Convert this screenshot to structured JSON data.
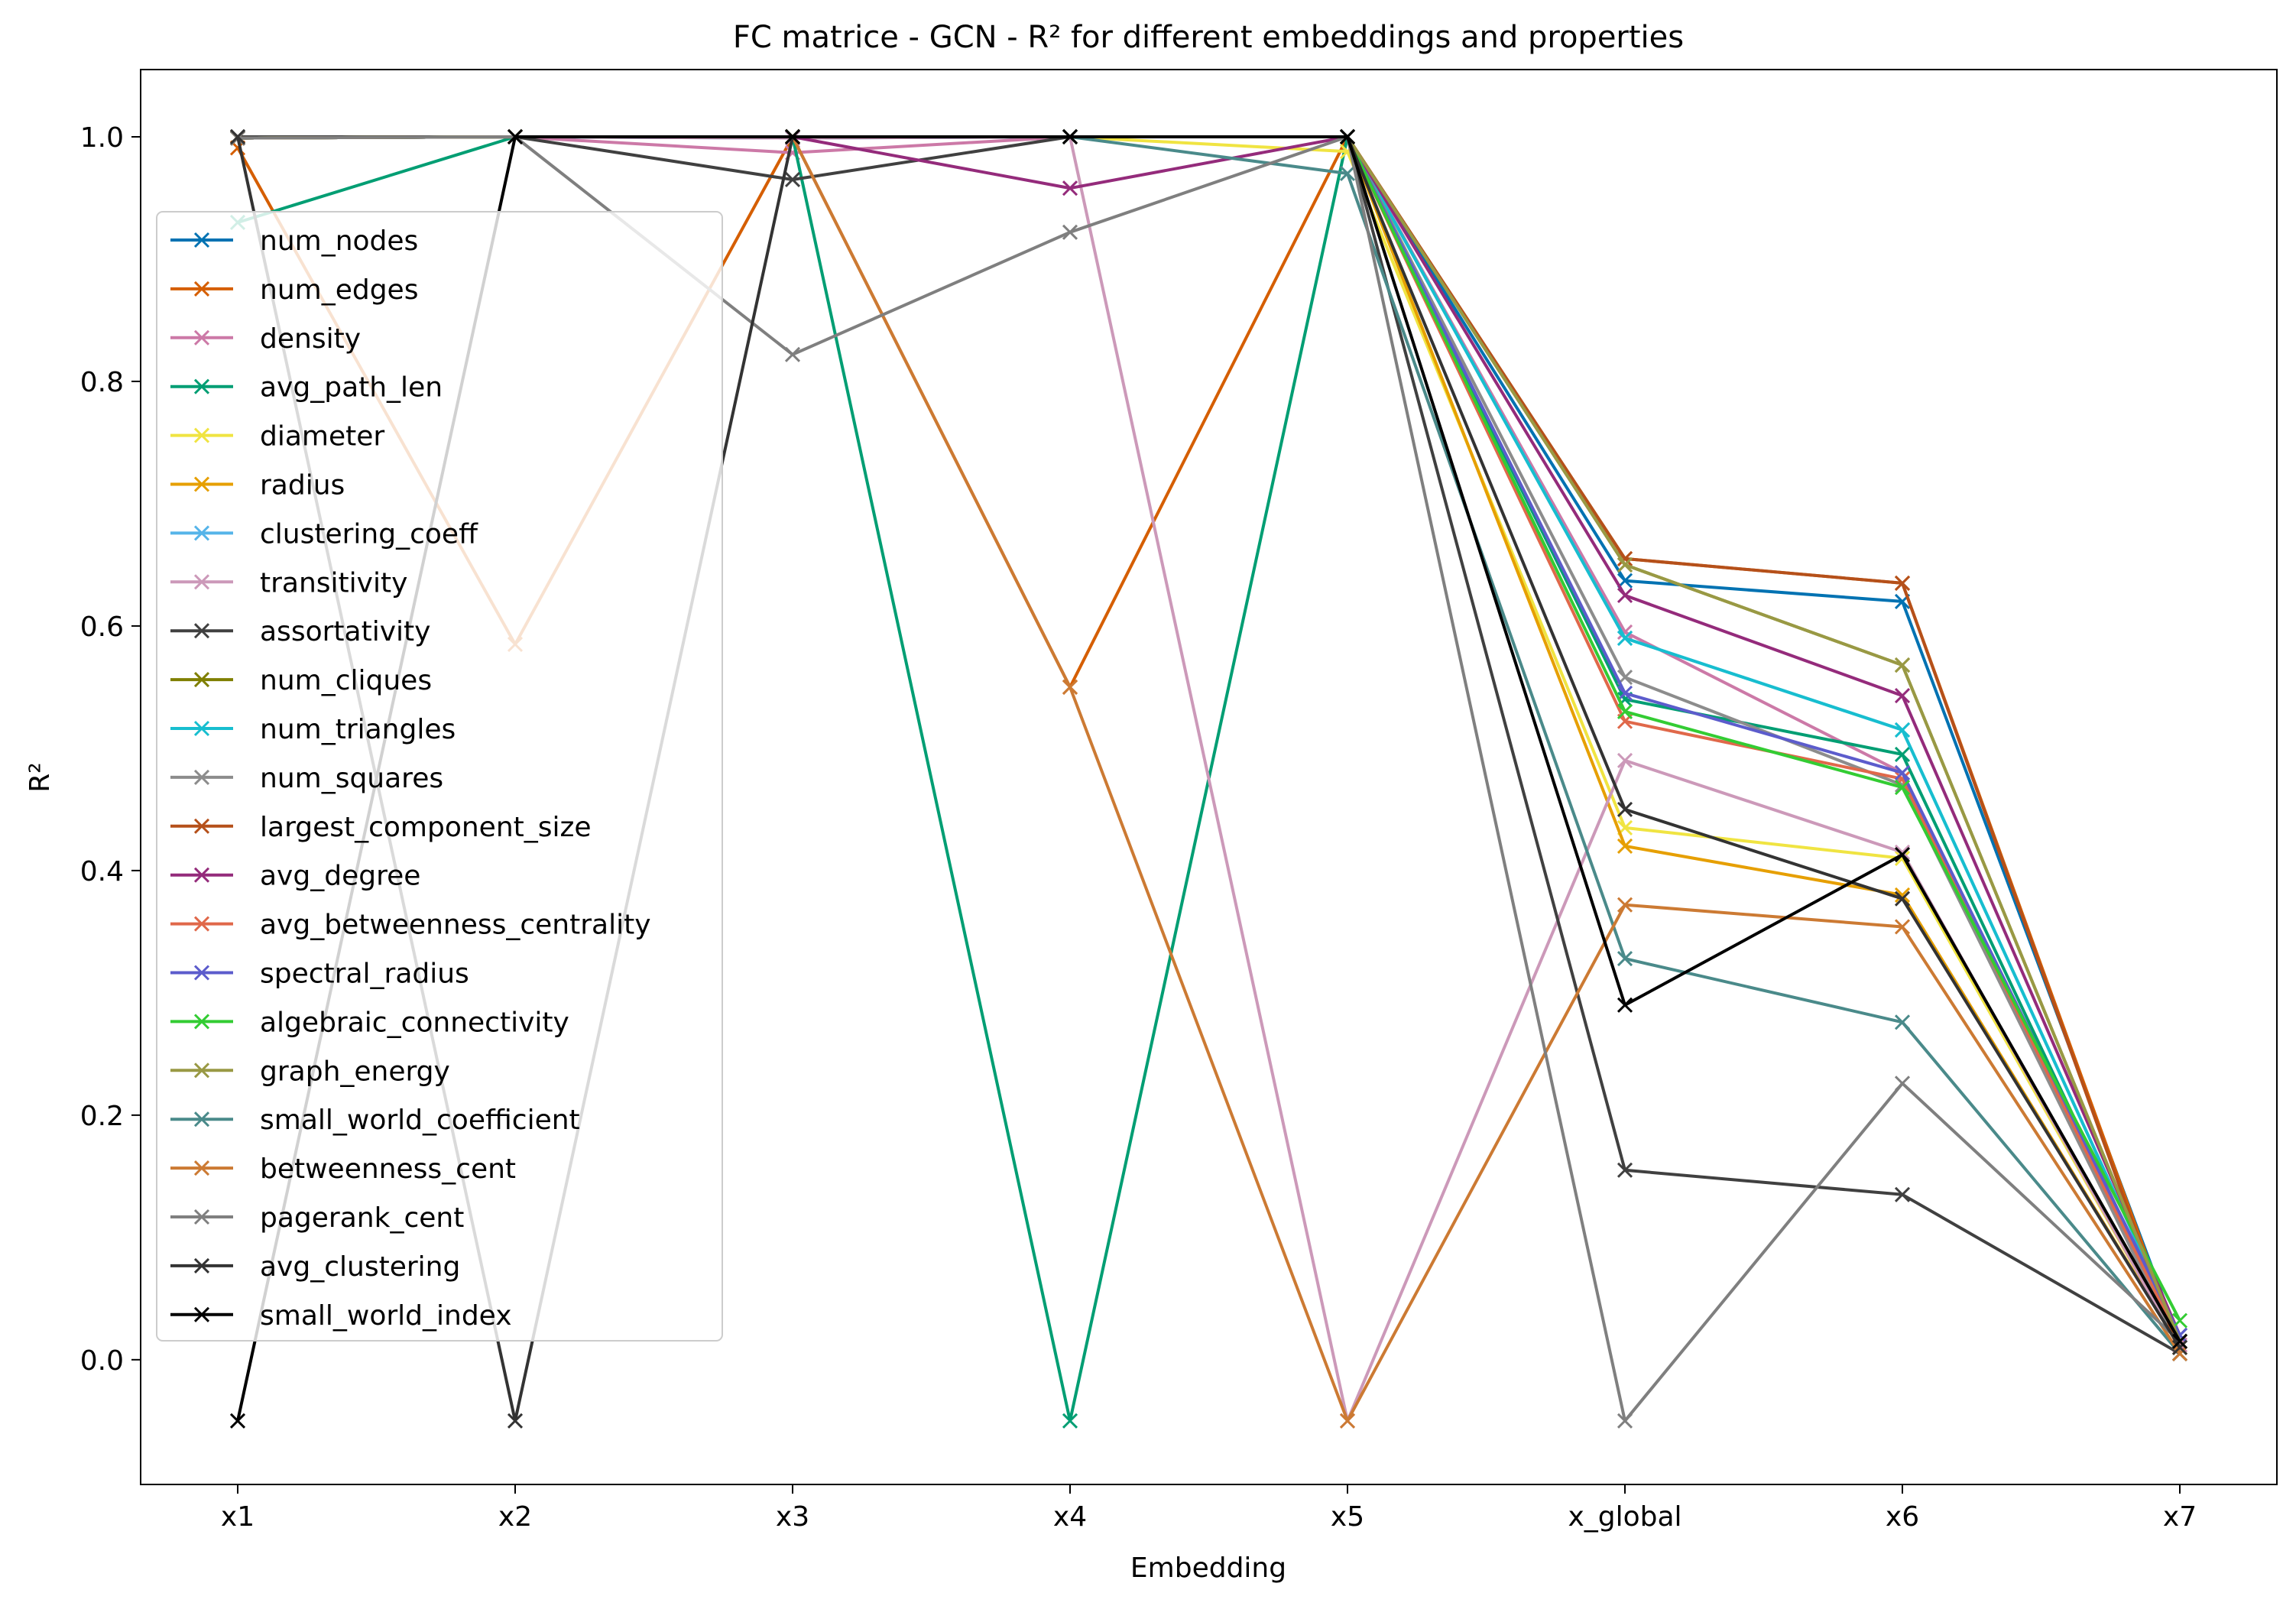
{
  "chart_data": {
    "type": "line",
    "title": "FC matrice - GCN - R² for different embeddings and properties",
    "xlabel": "Embedding",
    "ylabel": "R²",
    "categories": [
      "x1",
      "x2",
      "x3",
      "x4",
      "x5",
      "x_global",
      "x6",
      "x7"
    ],
    "ylim": [
      -0.102,
      1.055
    ],
    "yticks": [
      0.0,
      0.2,
      0.4,
      0.6,
      0.8,
      1.0
    ],
    "ytick_labels": [
      "0.0",
      "0.2",
      "0.4",
      "0.6",
      "0.8",
      "1.0"
    ],
    "grid": false,
    "legend_position": "upper-left",
    "marker": "x",
    "series": [
      {
        "name": "num_nodes",
        "color": "#0072B2",
        "values": [
          0.999,
          1.0,
          0.999,
          1.0,
          1.0,
          0.637,
          0.62,
          0.015
        ]
      },
      {
        "name": "num_edges",
        "color": "#D55E00",
        "values": [
          0.991,
          0.585,
          1.0,
          0.55,
          1.0,
          0.655,
          0.635,
          0.01
        ]
      },
      {
        "name": "density",
        "color": "#CC79A7",
        "values": [
          0.999,
          1.0,
          0.987,
          1.0,
          1.0,
          0.595,
          0.48,
          0.012
        ]
      },
      {
        "name": "avg_path_len",
        "color": "#009E73",
        "values": [
          0.93,
          1.0,
          1.0,
          -0.05,
          1.0,
          0.54,
          0.495,
          0.015
        ]
      },
      {
        "name": "diameter",
        "color": "#F0E442",
        "values": [
          0.999,
          1.0,
          1.0,
          1.0,
          0.988,
          0.435,
          0.41,
          0.01
        ]
      },
      {
        "name": "radius",
        "color": "#E69F00",
        "values": [
          0.999,
          1.0,
          1.0,
          1.0,
          1.0,
          0.42,
          0.38,
          0.01
        ]
      },
      {
        "name": "clustering_coeff",
        "color": "#56B4E9",
        "values": [
          0.999,
          1.0,
          1.0,
          1.0,
          1.0,
          0.59,
          0.515,
          0.02
        ]
      },
      {
        "name": "transitivity",
        "color": "#CC99B9",
        "values": [
          0.999,
          1.0,
          0.999,
          1.0,
          -0.05,
          0.49,
          0.415,
          0.01
        ]
      },
      {
        "name": "assortativity",
        "color": "#404040",
        "values": [
          1.0,
          1.0,
          0.965,
          1.0,
          1.0,
          0.155,
          0.135,
          0.005
        ]
      },
      {
        "name": "num_cliques",
        "color": "#7F7F00",
        "values": [
          0.999,
          1.0,
          1.0,
          1.0,
          1.0,
          0.65,
          0.568,
          0.015
        ]
      },
      {
        "name": "num_triangles",
        "color": "#17BECF",
        "values": [
          0.999,
          1.0,
          1.0,
          1.0,
          1.0,
          0.59,
          0.515,
          0.02
        ]
      },
      {
        "name": "num_squares",
        "color": "#8C8C8C",
        "values": [
          0.999,
          1.0,
          1.0,
          1.0,
          1.0,
          0.558,
          0.47,
          0.01
        ]
      },
      {
        "name": "largest_component_size",
        "color": "#B5501A",
        "values": [
          0.999,
          1.0,
          1.0,
          1.0,
          1.0,
          0.655,
          0.635,
          0.005
        ]
      },
      {
        "name": "avg_degree",
        "color": "#942B7B",
        "values": [
          0.999,
          1.0,
          1.0,
          0.958,
          1.0,
          0.625,
          0.543,
          0.02
        ]
      },
      {
        "name": "avg_betweenness_centrality",
        "color": "#E0684A",
        "values": [
          0.999,
          1.0,
          1.0,
          1.0,
          1.0,
          0.522,
          0.475,
          0.015
        ]
      },
      {
        "name": "spectral_radius",
        "color": "#5C5CCC",
        "values": [
          0.999,
          1.0,
          1.0,
          1.0,
          1.0,
          0.545,
          0.48,
          0.02
        ]
      },
      {
        "name": "algebraic_connectivity",
        "color": "#33CC33",
        "values": [
          0.999,
          1.0,
          1.0,
          1.0,
          1.0,
          0.53,
          0.468,
          0.032
        ]
      },
      {
        "name": "graph_energy",
        "color": "#999944",
        "values": [
          0.999,
          1.0,
          1.0,
          1.0,
          1.0,
          0.65,
          0.568,
          0.015
        ]
      },
      {
        "name": "small_world_coefficient",
        "color": "#4A8A8A",
        "values": [
          0.999,
          1.0,
          1.0,
          1.0,
          0.97,
          0.328,
          0.276,
          0.005
        ]
      },
      {
        "name": "betweenness_cent",
        "color": "#CC7A33",
        "values": [
          0.999,
          1.0,
          1.0,
          0.55,
          -0.05,
          0.372,
          0.354,
          0.005
        ]
      },
      {
        "name": "pagerank_cent",
        "color": "#7F7F7F",
        "values": [
          0.999,
          1.0,
          0.822,
          0.922,
          1.0,
          -0.05,
          0.226,
          0.015
        ]
      },
      {
        "name": "avg_clustering",
        "color": "#333333",
        "values": [
          1.0,
          -0.05,
          1.0,
          1.0,
          1.0,
          0.45,
          0.377,
          0.01
        ]
      },
      {
        "name": "small_world_index",
        "color": "#000000",
        "values": [
          -0.05,
          1.0,
          1.0,
          1.0,
          1.0,
          0.29,
          0.413,
          0.015
        ]
      }
    ]
  }
}
